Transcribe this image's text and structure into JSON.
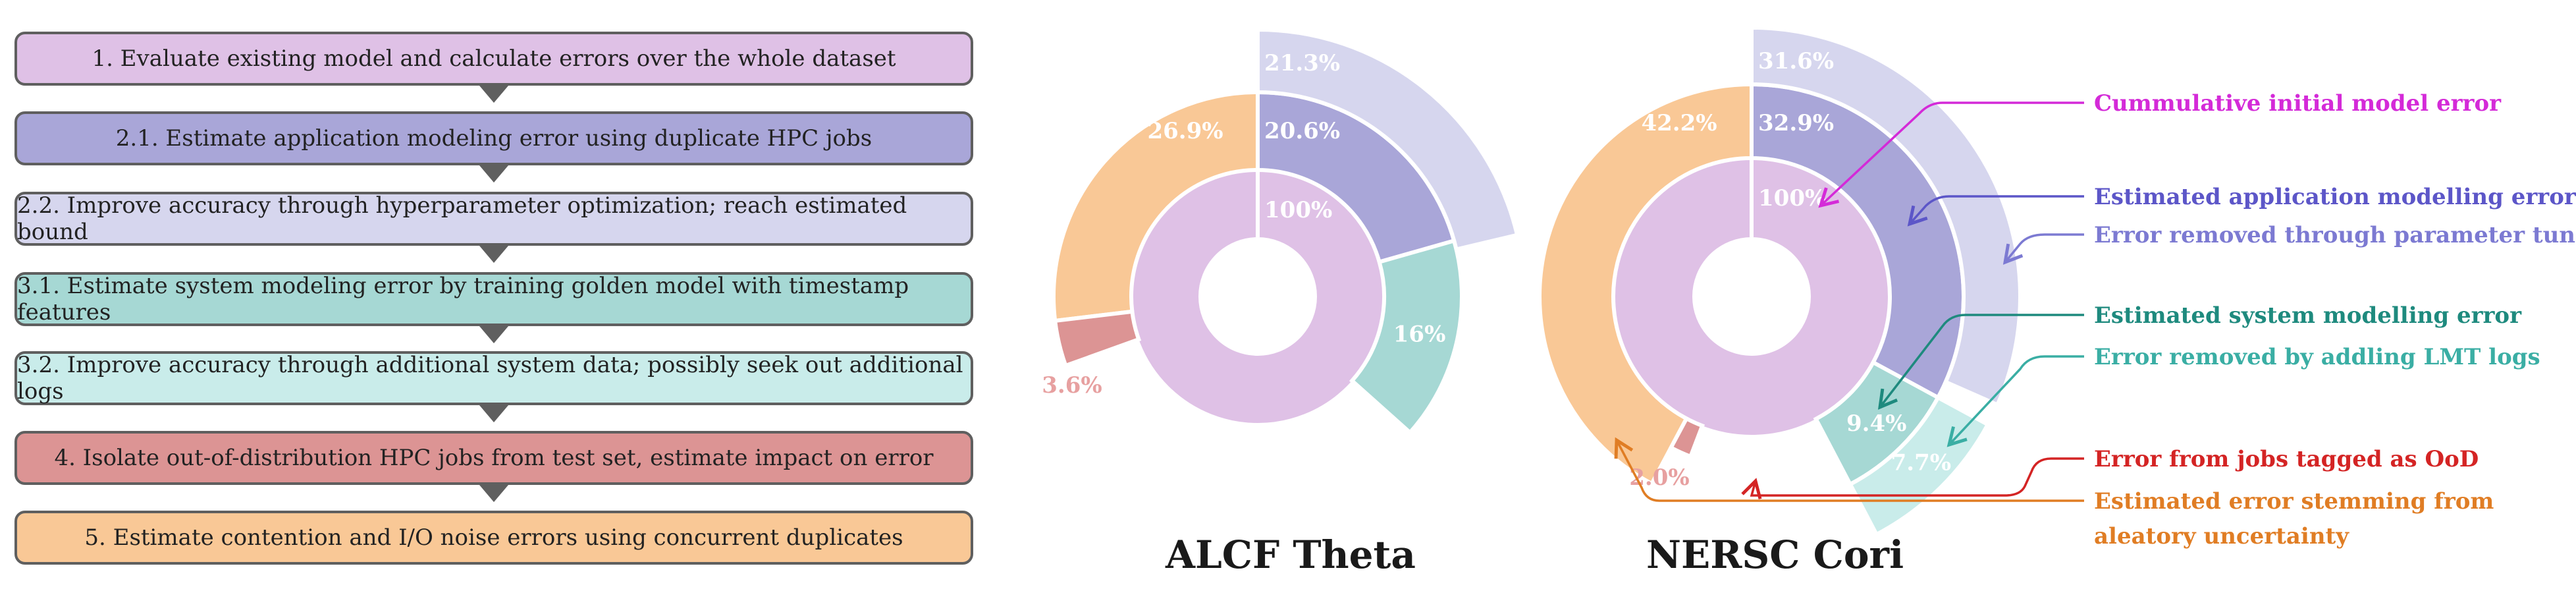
{
  "steps": [
    {
      "label": "1. Evaluate existing model and calculate errors over the whole dataset",
      "color": "#dfc1e6"
    },
    {
      "label": "2.1. Estimate application modeling error using duplicate HPC jobs",
      "color": "#a9a6d8"
    },
    {
      "label": "2.2. Improve accuracy through hyperparameter optimization; reach estimated bound",
      "color": "#d6d6ee"
    },
    {
      "label": "3.1. Estimate system modeling error by training golden model with timestamp features",
      "color": "#a6d8d4"
    },
    {
      "label": "3.2. Improve accuracy through additional system data; possibly seek out additional logs",
      "color": "#c9ecea"
    },
    {
      "label": "4. Isolate out-of-distribution HPC jobs from test set, estimate impact on error",
      "color": "#dc9494"
    },
    {
      "label": "5. Estimate contention and I/O noise errors using concurrent duplicates",
      "color": "#f9c896"
    }
  ],
  "colors": {
    "initial": "#dfc1e6",
    "app": "#a9a6d8",
    "tuning": "#d6d6ee",
    "system": "#a6d8d4",
    "lmt": "#c9ecea",
    "ood": "#dc9494",
    "aleatory": "#f9c896"
  },
  "chart_data": [
    {
      "type": "pie",
      "title": "ALCF Theta",
      "inner": [
        {
          "label": "100%",
          "value": 100
        }
      ],
      "middle": [
        {
          "name": "app",
          "label": "20.6%",
          "value": 20.6
        },
        {
          "name": "system",
          "label": "16%",
          "value": 16
        },
        {
          "name": "ood",
          "label": "3.6%",
          "value": 3.6
        },
        {
          "name": "aleatory",
          "label": "26.9%",
          "value": 26.9
        }
      ],
      "outer": [
        {
          "name": "tuning",
          "label": "21.3%",
          "value": 21.3
        }
      ]
    },
    {
      "type": "pie",
      "title": "NERSC Cori",
      "inner": [
        {
          "label": "100%",
          "value": 100
        }
      ],
      "middle": [
        {
          "name": "app",
          "label": "32.9%",
          "value": 32.9
        },
        {
          "name": "system",
          "label": "9.4%",
          "value": 9.4
        },
        {
          "name": "ood",
          "label": "2.0%",
          "value": 2.0
        },
        {
          "name": "aleatory",
          "label": "42.2%",
          "value": 42.2
        }
      ],
      "outer": [
        {
          "name": "tuning",
          "label": "31.6%",
          "value": 31.6
        },
        {
          "name": "lmt",
          "label": "7.7%",
          "value": 7.7
        }
      ]
    }
  ],
  "legend": [
    {
      "text": "Cummulative initial model error",
      "color": "#d42ad8"
    },
    {
      "text": "Estimated application modelling error",
      "color": "#5c56c8"
    },
    {
      "text": "Error removed through parameter tuning",
      "color": "#7c7ad2"
    },
    {
      "text": "Estimated system modelling error",
      "color": "#1e8a7e"
    },
    {
      "text": "Error removed by addling LMT logs",
      "color": "#3aaea4"
    },
    {
      "text": "Error from jobs tagged as OoD",
      "color": "#d42424"
    },
    {
      "text": "Estimated error stemming from",
      "color": "#e07d24"
    },
    {
      "text": "aleatory uncertainty",
      "color": "#e07d24"
    }
  ]
}
